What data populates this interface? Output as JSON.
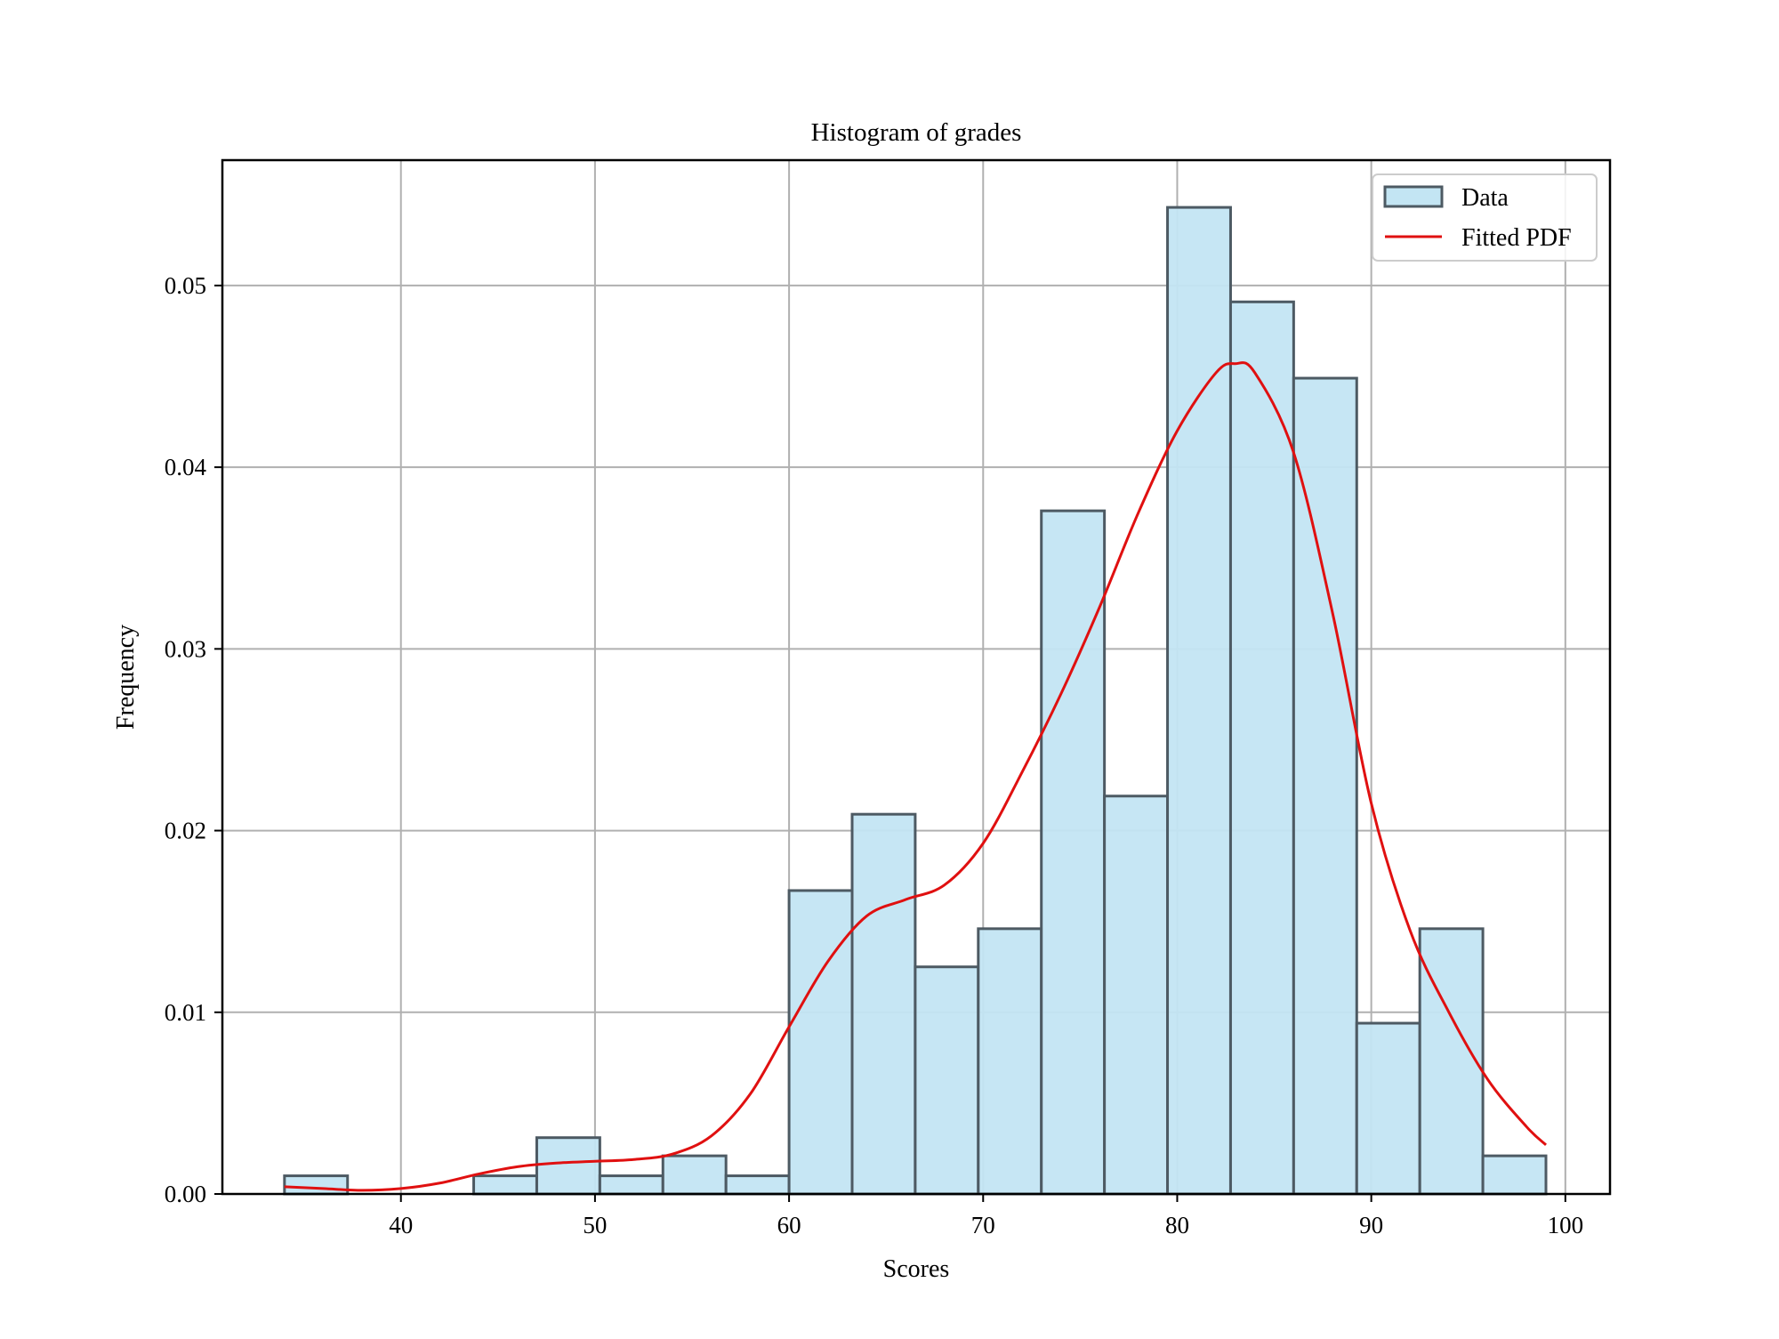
{
  "chart_data": {
    "type": "bar",
    "title": "Histogram of grades",
    "xlabel": "Scores",
    "ylabel": "Frequency",
    "xlim": [
      30.8,
      102.3
    ],
    "ylim": [
      0,
      0.0569
    ],
    "xticks": [
      40,
      50,
      60,
      70,
      80,
      90,
      100
    ],
    "yticks": [
      0.0,
      0.01,
      0.02,
      0.03,
      0.04,
      0.05
    ],
    "grid": true,
    "legend_position": "top-right",
    "colors": {
      "bar_fill": "#c3e5f3",
      "bar_edge": "#4d5a63",
      "line": "#e01010",
      "grid": "#b0b0b0",
      "axes": "#000000"
    },
    "series": [
      {
        "name": "Data",
        "type": "histogram",
        "bin_edges": [
          34.0,
          37.25,
          40.5,
          43.75,
          47.0,
          50.25,
          53.5,
          56.75,
          60.0,
          63.25,
          66.5,
          69.75,
          73.0,
          76.25,
          79.5,
          82.75,
          86.0,
          89.25,
          92.5,
          95.75,
          99.0
        ],
        "values": [
          0.001,
          0.0,
          0.0,
          0.001,
          0.0031,
          0.001,
          0.0021,
          0.001,
          0.0167,
          0.0209,
          0.0125,
          0.0146,
          0.0376,
          0.0219,
          0.0543,
          0.0491,
          0.0449,
          0.0094,
          0.0146,
          0.0021
        ]
      },
      {
        "name": "Fitted PDF",
        "type": "line",
        "x": [
          34,
          36,
          38,
          40,
          42,
          44,
          46,
          48,
          50,
          52,
          54,
          56,
          58,
          60,
          62,
          64,
          66,
          68,
          70,
          72,
          74,
          76,
          78,
          80,
          82,
          83,
          84,
          86,
          88,
          90,
          92,
          94,
          96,
          98,
          99
        ],
        "y": [
          0.0004,
          0.0003,
          0.0002,
          0.0003,
          0.0006,
          0.0011,
          0.0015,
          0.0017,
          0.0018,
          0.0019,
          0.0022,
          0.0032,
          0.0055,
          0.0092,
          0.0128,
          0.0153,
          0.0162,
          0.017,
          0.0193,
          0.0232,
          0.0275,
          0.0323,
          0.0375,
          0.042,
          0.0452,
          0.0457,
          0.0452,
          0.0408,
          0.032,
          0.0215,
          0.0145,
          0.01,
          0.0063,
          0.0037,
          0.0027
        ]
      }
    ]
  }
}
